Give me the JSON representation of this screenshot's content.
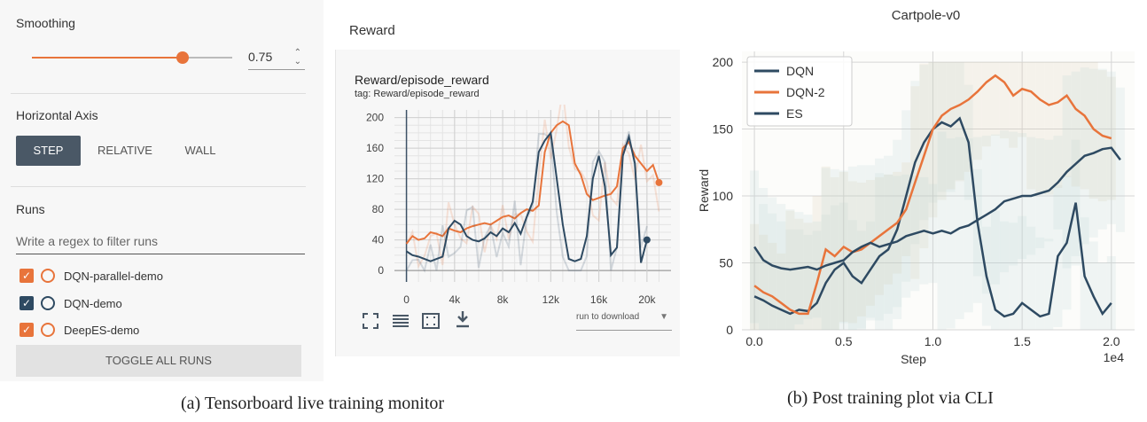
{
  "colors": {
    "orange": "#e8743b",
    "navy": "#2e4a62",
    "dark_button": "#4a5866",
    "panel_bg": "#f7f7f7"
  },
  "sidebar": {
    "smoothing_label": "Smoothing",
    "smoothing_value": "0.75",
    "smoothing_fraction": 0.75,
    "horizontal_axis_label": "Horizontal Axis",
    "axis_buttons": [
      "STEP",
      "RELATIVE",
      "WALL"
    ],
    "axis_selected": "STEP",
    "runs_label": "Runs",
    "filter_placeholder": "Write a regex to filter runs",
    "runs": [
      {
        "name": "DQN-parallel-demo",
        "checked": true,
        "color": "#e8743b"
      },
      {
        "name": "DQN-demo",
        "checked": true,
        "color": "#2e4a62"
      },
      {
        "name": "DeepES-demo",
        "checked": true,
        "color": "#e8743b"
      }
    ],
    "toggle_all_label": "TOGGLE ALL RUNS"
  },
  "card": {
    "header": "Reward",
    "title": "Reward/episode_reward",
    "tag": "tag: Reward/episode_reward",
    "download_label": "run to download",
    "toolbar_icons": [
      "expand-icon",
      "list-icon",
      "fit-domain-icon",
      "download-icon"
    ]
  },
  "captions": {
    "a": "(a) Tensorboard live training monitor",
    "b": "(b) Post training plot via CLI"
  },
  "chart_data": [
    {
      "type": "line",
      "title": "Reward/episode_reward",
      "xlabel": "",
      "ylabel": "",
      "x_ticks": [
        "0",
        "4k",
        "8k",
        "12k",
        "16k",
        "20k"
      ],
      "y_ticks": [
        "0",
        "40",
        "80",
        "120",
        "160",
        "200"
      ],
      "xlim": [
        -1000,
        22000
      ],
      "ylim": [
        -15,
        210
      ],
      "grid": true,
      "series": [
        {
          "color": "#e8743b",
          "x": [
            0,
            500,
            1000,
            1500,
            2000,
            2500,
            3000,
            3500,
            4000,
            4500,
            5000,
            5500,
            6000,
            6500,
            7000,
            7500,
            8000,
            8500,
            9000,
            9500,
            10000,
            10500,
            11000,
            11500,
            12000,
            12500,
            13000,
            13500,
            14000,
            14500,
            15000,
            15500,
            16000,
            16500,
            17000,
            17500,
            18000,
            18500,
            19000,
            19500,
            20000,
            20500,
            21000
          ],
          "y": [
            35,
            45,
            40,
            42,
            50,
            48,
            45,
            55,
            52,
            50,
            55,
            58,
            60,
            62,
            60,
            65,
            70,
            72,
            68,
            75,
            80,
            78,
            85,
            155,
            180,
            190,
            195,
            190,
            140,
            125,
            100,
            92,
            95,
            98,
            100,
            110,
            160,
            168,
            150,
            140,
            130,
            138,
            115
          ]
        },
        {
          "color": "#2e4a62",
          "x": [
            0,
            500,
            1000,
            1500,
            2000,
            2500,
            3000,
            3500,
            4000,
            4500,
            5000,
            5500,
            6000,
            6500,
            7000,
            7500,
            8000,
            8500,
            9000,
            9500,
            10000,
            10500,
            11000,
            11500,
            12000,
            12500,
            13000,
            13500,
            14000,
            14500,
            15000,
            15500,
            16000,
            16500,
            17000,
            17500,
            18000,
            18500,
            19000,
            19500,
            20000
          ],
          "y": [
            25,
            20,
            18,
            15,
            12,
            15,
            18,
            55,
            65,
            60,
            45,
            40,
            38,
            42,
            50,
            45,
            55,
            50,
            62,
            48,
            70,
            90,
            155,
            170,
            180,
            120,
            60,
            15,
            12,
            15,
            45,
            120,
            150,
            110,
            20,
            30,
            150,
            175,
            140,
            10,
            40
          ]
        }
      ]
    },
    {
      "type": "line",
      "title": "Cartpole-v0",
      "xlabel": "Step",
      "ylabel": "Reward",
      "x_ticks": [
        "0.0",
        "0.5",
        "1.0",
        "1.5",
        "2.0"
      ],
      "x_multiplier": "1e4",
      "y_ticks": [
        "0",
        "50",
        "100",
        "150",
        "200"
      ],
      "xlim": [
        -0.07,
        2.13
      ],
      "ylim": [
        0,
        208
      ],
      "grid": true,
      "legend": "top-left",
      "series": [
        {
          "name": "DQN",
          "color": "#2e4a62",
          "x": [
            0,
            0.05,
            0.1,
            0.15,
            0.2,
            0.25,
            0.3,
            0.35,
            0.4,
            0.45,
            0.5,
            0.55,
            0.6,
            0.65,
            0.7,
            0.75,
            0.8,
            0.85,
            0.9,
            0.95,
            1.0,
            1.05,
            1.1,
            1.15,
            1.2,
            1.25,
            1.3,
            1.35,
            1.4,
            1.45,
            1.5,
            1.55,
            1.6,
            1.65,
            1.7,
            1.75,
            1.8,
            1.85,
            1.9,
            1.95,
            2.0
          ],
          "y": [
            25,
            22,
            18,
            15,
            12,
            15,
            14,
            20,
            35,
            45,
            50,
            40,
            35,
            45,
            55,
            60,
            75,
            100,
            125,
            140,
            150,
            155,
            152,
            158,
            140,
            80,
            40,
            15,
            10,
            12,
            20,
            15,
            10,
            12,
            55,
            65,
            95,
            40,
            25,
            12,
            20
          ]
        },
        {
          "name": "DQN-2",
          "color": "#e8743b",
          "x": [
            0,
            0.05,
            0.1,
            0.15,
            0.2,
            0.25,
            0.3,
            0.35,
            0.4,
            0.45,
            0.5,
            0.55,
            0.6,
            0.65,
            0.7,
            0.75,
            0.8,
            0.85,
            0.9,
            0.95,
            1.0,
            1.05,
            1.1,
            1.15,
            1.2,
            1.25,
            1.3,
            1.35,
            1.4,
            1.45,
            1.5,
            1.55,
            1.6,
            1.65,
            1.7,
            1.75,
            1.8,
            1.85,
            1.9,
            1.95,
            2.0
          ],
          "y": [
            33,
            28,
            25,
            20,
            15,
            12,
            12,
            35,
            60,
            55,
            62,
            58,
            60,
            65,
            70,
            75,
            80,
            90,
            110,
            130,
            150,
            160,
            165,
            168,
            172,
            178,
            185,
            190,
            185,
            175,
            180,
            178,
            172,
            168,
            170,
            175,
            165,
            160,
            150,
            145,
            143
          ]
        },
        {
          "name": "ES",
          "color": "#2e4a62",
          "x": [
            0,
            0.05,
            0.1,
            0.15,
            0.2,
            0.25,
            0.3,
            0.35,
            0.4,
            0.45,
            0.5,
            0.55,
            0.6,
            0.65,
            0.7,
            0.75,
            0.8,
            0.85,
            0.9,
            0.95,
            1.0,
            1.05,
            1.1,
            1.15,
            1.2,
            1.25,
            1.3,
            1.35,
            1.4,
            1.45,
            1.5,
            1.55,
            1.6,
            1.65,
            1.7,
            1.75,
            1.8,
            1.85,
            1.9,
            1.95,
            2.0,
            2.05
          ],
          "y": [
            62,
            52,
            48,
            46,
            45,
            46,
            47,
            45,
            48,
            50,
            52,
            58,
            62,
            65,
            62,
            64,
            66,
            70,
            72,
            74,
            72,
            74,
            72,
            76,
            78,
            82,
            86,
            90,
            96,
            98,
            100,
            100,
            102,
            104,
            110,
            118,
            124,
            130,
            132,
            135,
            136,
            127
          ]
        }
      ]
    }
  ]
}
